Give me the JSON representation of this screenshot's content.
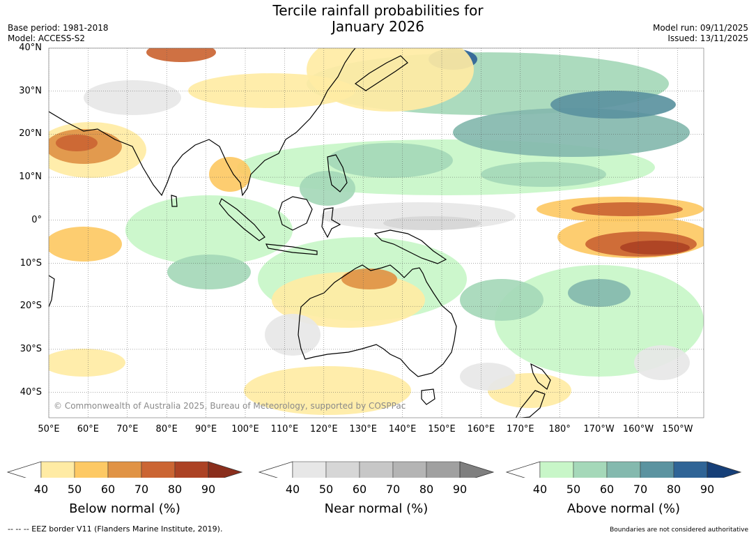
{
  "header": {
    "title_line1": "Tercile rainfall probabilities for",
    "title_line2": "January 2026",
    "base_period": "Base period: 1981-2018",
    "model": "Model: ACCESS-S2",
    "model_run": "Model run: 09/11/2025",
    "issued": "Issued: 13/11/2025"
  },
  "map": {
    "copyright": "© Commonwealth of Australia 2025, Bureau of Meteorology, supported by COSPPac",
    "lat_ticks": [
      "40°N",
      "30°N",
      "20°N",
      "10°N",
      "0°",
      "10°S",
      "20°S",
      "30°S",
      "40°S"
    ],
    "lon_ticks": [
      "50°E",
      "60°E",
      "70°E",
      "80°E",
      "90°E",
      "100°E",
      "110°E",
      "120°E",
      "130°E",
      "140°E",
      "150°E",
      "160°E",
      "170°E",
      "180°",
      "170°W",
      "160°W",
      "150°W"
    ]
  },
  "legend": {
    "below": {
      "title": "Below normal (%)",
      "ticks": [
        "40",
        "50",
        "60",
        "70",
        "80",
        "90"
      ],
      "colors": [
        "#ffeba4",
        "#fdc964",
        "#e09345",
        "#cb6533",
        "#ac4224",
        "#8a2e1c"
      ]
    },
    "near": {
      "title": "Near normal (%)",
      "ticks": [
        "40",
        "50",
        "60",
        "70",
        "80",
        "90"
      ],
      "colors": [
        "#e7e7e7",
        "#d6d6d6",
        "#c7c7c7",
        "#b4b4b4",
        "#a0a0a0",
        "#7f7f7f"
      ]
    },
    "above": {
      "title": "Above normal (%)",
      "ticks": [
        "40",
        "50",
        "60",
        "70",
        "80",
        "90"
      ],
      "colors": [
        "#c8f6c8",
        "#a5d8b9",
        "#84b9ae",
        "#5b93a0",
        "#2f6496",
        "#163f78"
      ]
    }
  },
  "footer": {
    "eez_note": "--  --  -- EEZ border V11 (Flanders Marine Institute, 2019).",
    "disclaimer": "Boundaries are not considered authoritative"
  }
}
